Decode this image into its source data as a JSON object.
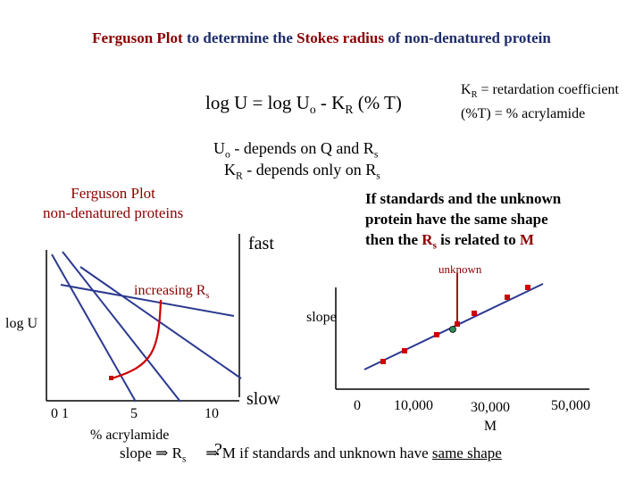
{
  "title": {
    "part1": "Ferguson Plot",
    "part2": " to determine the ",
    "part3": "Stokes radius",
    "part4": " of non-denatured protein"
  },
  "equation": {
    "a": "log U = log U",
    "a_sub": "o",
    "b": " - K",
    "b_sub": "R",
    "c": " (% T)"
  },
  "definitions": {
    "kr_line_a": "K",
    "kr_line_sub": "R",
    "kr_line_b": " = retardation coefficient",
    "t_line": "(%T) =  % acrylamide"
  },
  "dependencies": {
    "uo_a": "U",
    "uo_sub": "o",
    "uo_b": "  -  depends on Q  and  R",
    "uo_sub2": "s",
    "kr_a": "K",
    "kr_sub": "R",
    "kr_b": "  -  depends only on R",
    "kr_sub2": "s"
  },
  "ferguson_label": {
    "line1": "Ferguson Plot",
    "line2": "non-denatured proteins"
  },
  "standards_note": {
    "line1": "If standards and the unknown",
    "line2": "protein have the same shape",
    "line3_a": "then the ",
    "line3_r": "R",
    "line3_sub": "s",
    "line3_b": " is related to ",
    "line3_m": "M"
  },
  "left_plot": {
    "fast": "fast",
    "slow": "slow",
    "increasing_a": "increasing R",
    "increasing_sub": "s",
    "y_label": "log U",
    "x_tick_left": "0  1",
    "x_tick_5": "5",
    "x_tick_10": "10",
    "x_label": "% acrylamide"
  },
  "right_plot": {
    "slope_label": "slope",
    "unknown_label": "unknown",
    "x_tick_0": "0",
    "x_tick_10k": "10,000",
    "x_tick_30k": "30,000",
    "x_tick_30k_sub": "M",
    "x_tick_50k": "50,000"
  },
  "bottom_line": {
    "a": "slope  ⇒  R",
    "a_sub": "s",
    "q": "?",
    "b": "⇒  M if standards and unknown have ",
    "c": "same shape"
  },
  "colors": {
    "title_red": "#8b0000",
    "title_navy": "#1f2d6b",
    "marker_red": "#cc0000",
    "unknown_marker": "#2e8b57",
    "line_navy": "#2b3990"
  }
}
